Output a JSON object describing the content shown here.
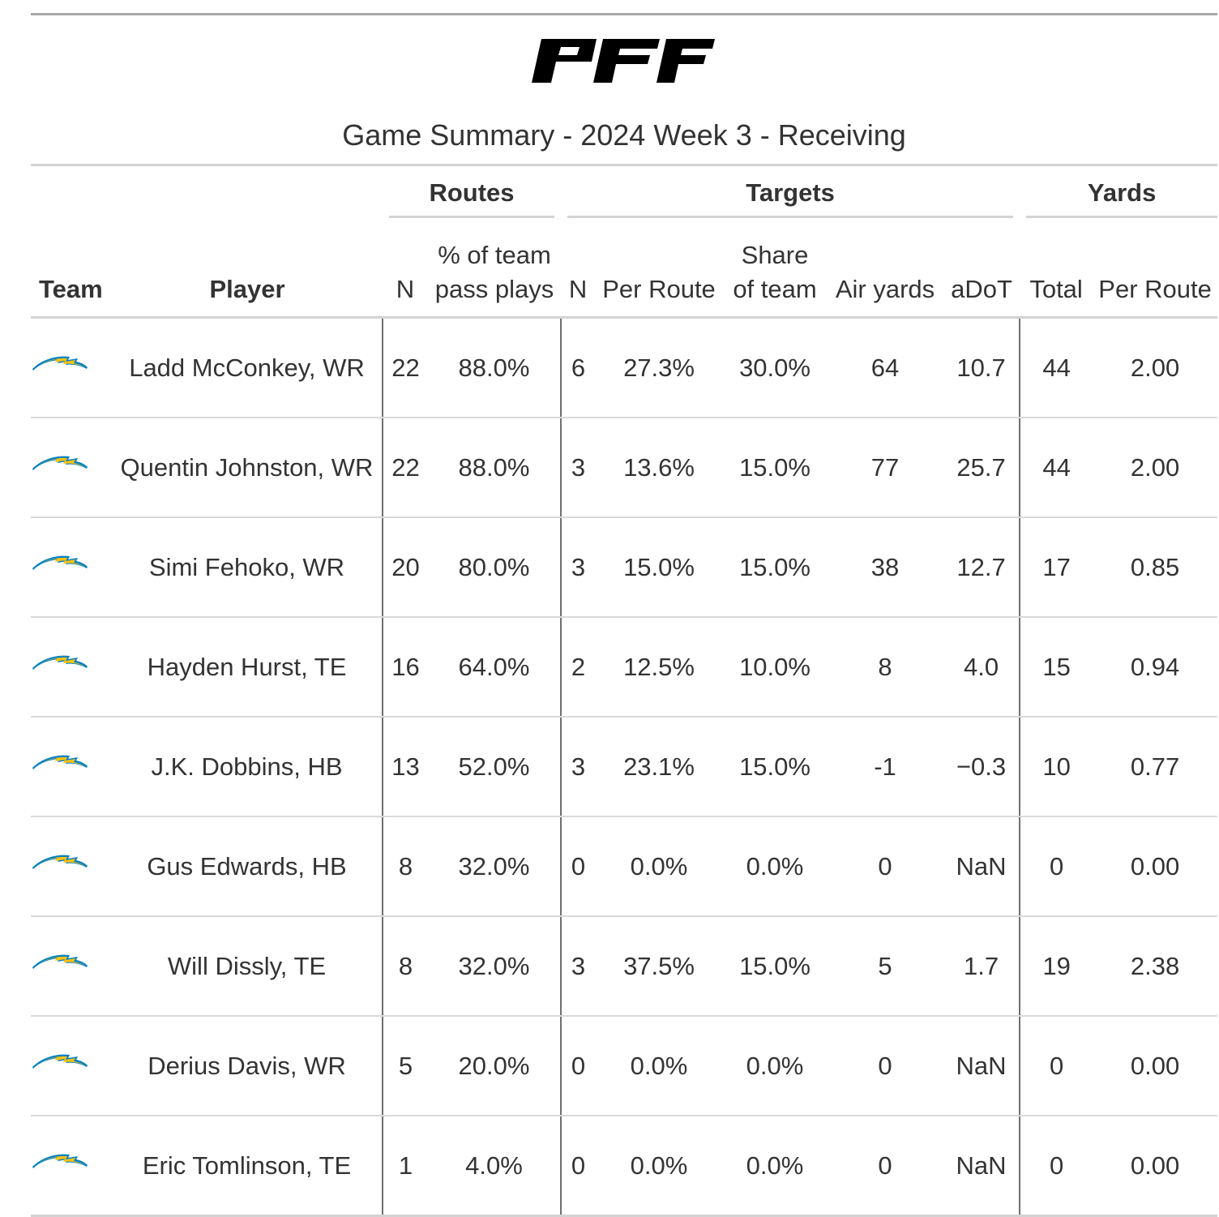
{
  "brand": {
    "logo_text": "PFF",
    "logo_color": "#000000",
    "team_logo_colors": {
      "blue": "#0080C6",
      "gold": "#FFC20E"
    }
  },
  "header": {
    "subtitle": "Game Summary - 2024 Week 3 - Receiving"
  },
  "spanners": {
    "routes": "Routes",
    "targets": "Targets",
    "yards": "Yards"
  },
  "columns": {
    "team": "Team",
    "player": "Player",
    "routes_n": "N",
    "routes_pct_line1": "% of team",
    "routes_pct_line2": "pass plays",
    "targets_n": "N",
    "targets_per_route": "Per Route",
    "share_line1": "Share",
    "share_line2": "of team",
    "air_yards": "Air yards",
    "adot": "aDoT",
    "yards_total": "Total",
    "yards_per_route": "Per Route"
  },
  "rows": [
    {
      "team_icon": "chargers-bolt-icon",
      "player": "Ladd McConkey, WR",
      "routes_n": "22",
      "routes_pct": "88.0%",
      "targets_n": "6",
      "targets_per_route": "27.3%",
      "share": "30.0%",
      "air_yards": "64",
      "adot": "10.7",
      "yards_total": "44",
      "yards_per_route": "2.00"
    },
    {
      "team_icon": "chargers-bolt-icon",
      "player": "Quentin Johnston, WR",
      "routes_n": "22",
      "routes_pct": "88.0%",
      "targets_n": "3",
      "targets_per_route": "13.6%",
      "share": "15.0%",
      "air_yards": "77",
      "adot": "25.7",
      "yards_total": "44",
      "yards_per_route": "2.00"
    },
    {
      "team_icon": "chargers-bolt-icon",
      "player": "Simi Fehoko, WR",
      "routes_n": "20",
      "routes_pct": "80.0%",
      "targets_n": "3",
      "targets_per_route": "15.0%",
      "share": "15.0%",
      "air_yards": "38",
      "adot": "12.7",
      "yards_total": "17",
      "yards_per_route": "0.85"
    },
    {
      "team_icon": "chargers-bolt-icon",
      "player": "Hayden Hurst, TE",
      "routes_n": "16",
      "routes_pct": "64.0%",
      "targets_n": "2",
      "targets_per_route": "12.5%",
      "share": "10.0%",
      "air_yards": "8",
      "adot": "4.0",
      "yards_total": "15",
      "yards_per_route": "0.94"
    },
    {
      "team_icon": "chargers-bolt-icon",
      "player": "J.K. Dobbins, HB",
      "routes_n": "13",
      "routes_pct": "52.0%",
      "targets_n": "3",
      "targets_per_route": "23.1%",
      "share": "15.0%",
      "air_yards": "-1",
      "adot": "−0.3",
      "yards_total": "10",
      "yards_per_route": "0.77"
    },
    {
      "team_icon": "chargers-bolt-icon",
      "player": "Gus Edwards, HB",
      "routes_n": "8",
      "routes_pct": "32.0%",
      "targets_n": "0",
      "targets_per_route": "0.0%",
      "share": "0.0%",
      "air_yards": "0",
      "adot": "NaN",
      "yards_total": "0",
      "yards_per_route": "0.00"
    },
    {
      "team_icon": "chargers-bolt-icon",
      "player": "Will Dissly, TE",
      "routes_n": "8",
      "routes_pct": "32.0%",
      "targets_n": "3",
      "targets_per_route": "37.5%",
      "share": "15.0%",
      "air_yards": "5",
      "adot": "1.7",
      "yards_total": "19",
      "yards_per_route": "2.38"
    },
    {
      "team_icon": "chargers-bolt-icon",
      "player": "Derius Davis, WR",
      "routes_n": "5",
      "routes_pct": "20.0%",
      "targets_n": "0",
      "targets_per_route": "0.0%",
      "share": "0.0%",
      "air_yards": "0",
      "adot": "NaN",
      "yards_total": "0",
      "yards_per_route": "0.00"
    },
    {
      "team_icon": "chargers-bolt-icon",
      "player": "Eric Tomlinson, TE",
      "routes_n": "1",
      "routes_pct": "4.0%",
      "targets_n": "0",
      "targets_per_route": "0.0%",
      "share": "0.0%",
      "air_yards": "0",
      "adot": "NaN",
      "yards_total": "0",
      "yards_per_route": "0.00"
    }
  ]
}
